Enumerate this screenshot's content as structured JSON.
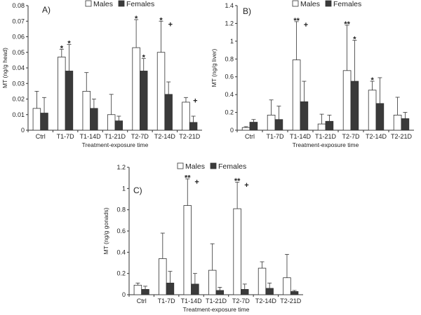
{
  "colors": {
    "males": "#ffffff",
    "females": "#3a3a3a",
    "axis": "#333333"
  },
  "chart_data": [
    {
      "type": "bar",
      "panel_label": "A)",
      "legend": [
        "Males",
        "Females"
      ],
      "legend_position": "top",
      "xlabel": "Treatment-exposure time",
      "ylabel": "MT (ng/g head)",
      "ylim": [
        0,
        0.08
      ],
      "yticks": [
        "0",
        "0.01",
        "0.02",
        "0.03",
        "0.04",
        "0.05",
        "0.06",
        "0.07",
        "0.08"
      ],
      "categories": [
        "Ctrl",
        "T1-7D",
        "T1-14D",
        "T1-21D",
        "T2-7D",
        "T2-14D",
        "T2-21D"
      ],
      "series": [
        {
          "name": "Males",
          "values": [
            0.014,
            0.047,
            0.025,
            0.01,
            0.053,
            0.05,
            0.018
          ],
          "error": [
            0.011,
            0.005,
            0.012,
            0.013,
            0.018,
            0.02,
            0.003
          ]
        },
        {
          "name": "Females",
          "values": [
            0.011,
            0.038,
            0.014,
            0.006,
            0.038,
            0.023,
            0.005
          ],
          "error": [
            0.01,
            0.017,
            0.006,
            0.003,
            0.008,
            0.008,
            0.004
          ]
        }
      ],
      "annotations": [
        {
          "category": "T1-7D",
          "series": "Males",
          "text": "*"
        },
        {
          "category": "T1-7D",
          "series": "Females",
          "text": "*"
        },
        {
          "category": "T2-7D",
          "series": "Males",
          "text": "*"
        },
        {
          "category": "T2-7D",
          "series": "Females",
          "text": "*"
        },
        {
          "category": "T2-14D",
          "series": "Males",
          "text": "*"
        },
        {
          "category": "T2-14D",
          "series": "Males",
          "text": "+",
          "side": "right"
        },
        {
          "category": "T2-21D",
          "series": "Males",
          "text": "+",
          "side": "right"
        }
      ]
    },
    {
      "type": "bar",
      "panel_label": "B)",
      "legend": [
        "Males",
        "Females"
      ],
      "legend_position": "top",
      "xlabel": "Treatment-exposure time",
      "ylabel": "MT (ng/g liver)",
      "ylim": [
        0,
        1.4
      ],
      "yticks": [
        "0",
        "0.2",
        "0.4",
        "0.6",
        "0.8",
        "1",
        "1.2",
        "1.4"
      ],
      "categories": [
        "Ctrl",
        "T1-7D",
        "T1-14D",
        "T1-21D",
        "T2-7D",
        "T2-14D",
        "T2-21D"
      ],
      "series": [
        {
          "name": "Males",
          "values": [
            0.03,
            0.17,
            0.79,
            0.07,
            0.67,
            0.45,
            0.17
          ],
          "error": [
            0.01,
            0.17,
            0.43,
            0.11,
            0.51,
            0.1,
            0.2
          ]
        },
        {
          "name": "Females",
          "values": [
            0.09,
            0.12,
            0.32,
            0.1,
            0.55,
            0.3,
            0.13
          ],
          "error": [
            0.03,
            0.15,
            0.23,
            0.07,
            0.46,
            0.29,
            0.07
          ]
        }
      ],
      "annotations": [
        {
          "category": "T1-14D",
          "series": "Males",
          "text": "**"
        },
        {
          "category": "T1-14D",
          "series": "Males",
          "text": "+",
          "side": "right"
        },
        {
          "category": "T2-7D",
          "series": "Males",
          "text": "**"
        },
        {
          "category": "T2-7D",
          "series": "Females",
          "text": "*"
        },
        {
          "category": "T2-14D",
          "series": "Males",
          "text": "*"
        }
      ]
    },
    {
      "type": "bar",
      "panel_label": "C)",
      "legend": [
        "Males",
        "Females"
      ],
      "legend_position": "top",
      "xlabel": "Treatment-exposure time",
      "ylabel": "MT (ng/g gonads)",
      "ylim": [
        0,
        1.2
      ],
      "yticks": [
        "0",
        "0.2",
        "0.4",
        "0.6",
        "0.8",
        "1",
        "1.2"
      ],
      "categories": [
        "Ctrl",
        "T1-7D",
        "T1-14D",
        "T1-21D",
        "T2-7D",
        "T2-14D",
        "T2-21D"
      ],
      "series": [
        {
          "name": "Males",
          "values": [
            0.09,
            0.34,
            0.84,
            0.23,
            0.81,
            0.25,
            0.16
          ],
          "error": [
            0.02,
            0.24,
            0.25,
            0.25,
            0.25,
            0.06,
            0.22
          ]
        },
        {
          "name": "Females",
          "values": [
            0.05,
            0.11,
            0.1,
            0.04,
            0.05,
            0.06,
            0.03
          ],
          "error": [
            0.03,
            0.11,
            0.1,
            0.03,
            0.05,
            0.05,
            0.01
          ]
        }
      ],
      "annotations": [
        {
          "category": "T1-14D",
          "series": "Males",
          "text": "**"
        },
        {
          "category": "T1-14D",
          "series": "Males",
          "text": "+",
          "side": "right"
        },
        {
          "category": "T2-7D",
          "series": "Males",
          "text": "**"
        },
        {
          "category": "T2-7D",
          "series": "Males",
          "text": "+",
          "side": "right"
        }
      ]
    }
  ]
}
